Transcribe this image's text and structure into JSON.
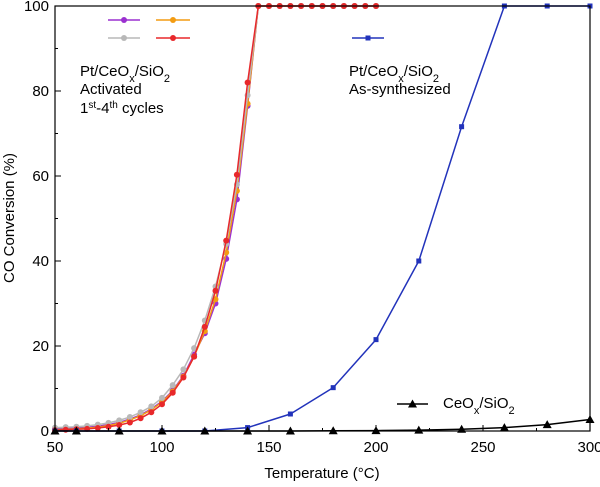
{
  "chart_data": {
    "type": "line",
    "xlabel": "Temperature (°C)",
    "ylabel": "CO Conversion (%)",
    "xlim": [
      50,
      300
    ],
    "ylim": [
      0,
      100
    ],
    "x_ticks": [
      50,
      100,
      150,
      200,
      250,
      300
    ],
    "y_ticks": [
      0,
      20,
      40,
      60,
      80,
      100
    ],
    "grid": false,
    "legend_groups": [
      {
        "lines": [
          "Pt/CeO",
          "x",
          "/SiO",
          "2"
        ],
        "extra": [
          "Activated",
          "1",
          "st",
          "-4",
          "th",
          " cycles"
        ]
      },
      {
        "lines": [
          "Pt/CeO",
          "x",
          "/SiO",
          "2"
        ],
        "extra": [
          "As-synthesized"
        ]
      },
      {
        "lines": [
          "CeO",
          "x",
          "/SiO",
          "2"
        ]
      }
    ],
    "series": [
      {
        "color": "#9b30d0",
        "marker": "circle",
        "points": [
          [
            50,
            0.5
          ],
          [
            55,
            0.6
          ],
          [
            60,
            0.7
          ],
          [
            65,
            0.9
          ],
          [
            70,
            1.1
          ],
          [
            75,
            1.5
          ],
          [
            80,
            2.0
          ],
          [
            85,
            2.8
          ],
          [
            90,
            3.8
          ],
          [
            95,
            5.2
          ],
          [
            100,
            7.0
          ],
          [
            105,
            9.5
          ],
          [
            110,
            13.0
          ],
          [
            115,
            18.0
          ],
          [
            120,
            23.0
          ],
          [
            125,
            30.0
          ],
          [
            130,
            40.5
          ],
          [
            135,
            54.5
          ],
          [
            140,
            76.5
          ],
          [
            145,
            100
          ],
          [
            150,
            100
          ],
          [
            155,
            100
          ],
          [
            160,
            100
          ],
          [
            165,
            100
          ],
          [
            170,
            100
          ],
          [
            175,
            100
          ],
          [
            180,
            100
          ],
          [
            185,
            100
          ],
          [
            190,
            100
          ],
          [
            195,
            100
          ],
          [
            200,
            100
          ]
        ]
      },
      {
        "color": "#f39c12",
        "marker": "circle",
        "points": [
          [
            50,
            0.3
          ],
          [
            55,
            0.4
          ],
          [
            60,
            0.5
          ],
          [
            65,
            0.7
          ],
          [
            70,
            0.9
          ],
          [
            75,
            1.3
          ],
          [
            80,
            1.8
          ],
          [
            85,
            2.6
          ],
          [
            90,
            3.6
          ],
          [
            95,
            5.0
          ],
          [
            100,
            6.8
          ],
          [
            105,
            9.3
          ],
          [
            110,
            12.8
          ],
          [
            115,
            17.5
          ],
          [
            120,
            23.5
          ],
          [
            125,
            31.0
          ],
          [
            130,
            42.0
          ],
          [
            135,
            56.5
          ],
          [
            140,
            77.0
          ],
          [
            145,
            100
          ],
          [
            150,
            100
          ],
          [
            155,
            100
          ],
          [
            160,
            100
          ],
          [
            165,
            100
          ],
          [
            170,
            100
          ],
          [
            175,
            100
          ],
          [
            180,
            100
          ],
          [
            185,
            100
          ],
          [
            190,
            100
          ],
          [
            195,
            100
          ],
          [
            200,
            100
          ]
        ]
      },
      {
        "color": "#b8b8b8",
        "marker": "circle",
        "points": [
          [
            50,
            0.8
          ],
          [
            55,
            0.9
          ],
          [
            60,
            1.0
          ],
          [
            65,
            1.2
          ],
          [
            70,
            1.5
          ],
          [
            75,
            1.9
          ],
          [
            80,
            2.5
          ],
          [
            85,
            3.3
          ],
          [
            90,
            4.4
          ],
          [
            95,
            5.8
          ],
          [
            100,
            7.8
          ],
          [
            105,
            10.8
          ],
          [
            110,
            14.5
          ],
          [
            115,
            19.5
          ],
          [
            120,
            26.0
          ],
          [
            125,
            34.0
          ],
          [
            130,
            44.0
          ],
          [
            135,
            58.0
          ],
          [
            140,
            79.0
          ],
          [
            145,
            100
          ],
          [
            150,
            100
          ],
          [
            155,
            100
          ],
          [
            160,
            100
          ],
          [
            165,
            100
          ],
          [
            170,
            100
          ],
          [
            175,
            100
          ],
          [
            180,
            100
          ],
          [
            185,
            100
          ],
          [
            190,
            100
          ],
          [
            195,
            100
          ],
          [
            200,
            100
          ]
        ]
      },
      {
        "color": "#e8282b",
        "marker": "circle",
        "points": [
          [
            50,
            0.2
          ],
          [
            55,
            0.3
          ],
          [
            60,
            0.4
          ],
          [
            65,
            0.5
          ],
          [
            70,
            0.7
          ],
          [
            75,
            1.0
          ],
          [
            80,
            1.4
          ],
          [
            85,
            2.0
          ],
          [
            90,
            3.0
          ],
          [
            95,
            4.4
          ],
          [
            100,
            6.3
          ],
          [
            105,
            9.0
          ],
          [
            110,
            12.6
          ],
          [
            115,
            17.5
          ],
          [
            120,
            24.5
          ],
          [
            125,
            33.0
          ],
          [
            130,
            44.8
          ],
          [
            135,
            60.3
          ],
          [
            140,
            82.0
          ],
          [
            145,
            100
          ],
          [
            150,
            100
          ],
          [
            155,
            100
          ],
          [
            160,
            100
          ],
          [
            165,
            100
          ],
          [
            170,
            100
          ],
          [
            175,
            100
          ],
          [
            180,
            100
          ],
          [
            185,
            100
          ],
          [
            190,
            100
          ],
          [
            195,
            100
          ],
          [
            200,
            100
          ]
        ]
      },
      {
        "color": "#2233bb",
        "marker": "square",
        "points": [
          [
            50,
            0.0
          ],
          [
            60,
            0.0
          ],
          [
            80,
            0.0
          ],
          [
            100,
            0.0
          ],
          [
            120,
            0.0
          ],
          [
            140,
            0.8
          ],
          [
            160,
            4.0
          ],
          [
            180,
            10.2
          ],
          [
            200,
            21.5
          ],
          [
            220,
            40.0
          ],
          [
            240,
            71.6
          ],
          [
            260,
            100
          ],
          [
            280,
            100
          ],
          [
            300,
            100
          ]
        ]
      },
      {
        "color": "#000000",
        "marker": "triangle",
        "points": [
          [
            50,
            0.0
          ],
          [
            60,
            0.0
          ],
          [
            80,
            0.0
          ],
          [
            100,
            0.0
          ],
          [
            120,
            0.0
          ],
          [
            140,
            0.0
          ],
          [
            160,
            0.0
          ],
          [
            180,
            0.05
          ],
          [
            200,
            0.1
          ],
          [
            220,
            0.2
          ],
          [
            240,
            0.4
          ],
          [
            260,
            0.8
          ],
          [
            280,
            1.5
          ],
          [
            300,
            2.7
          ]
        ]
      }
    ]
  }
}
